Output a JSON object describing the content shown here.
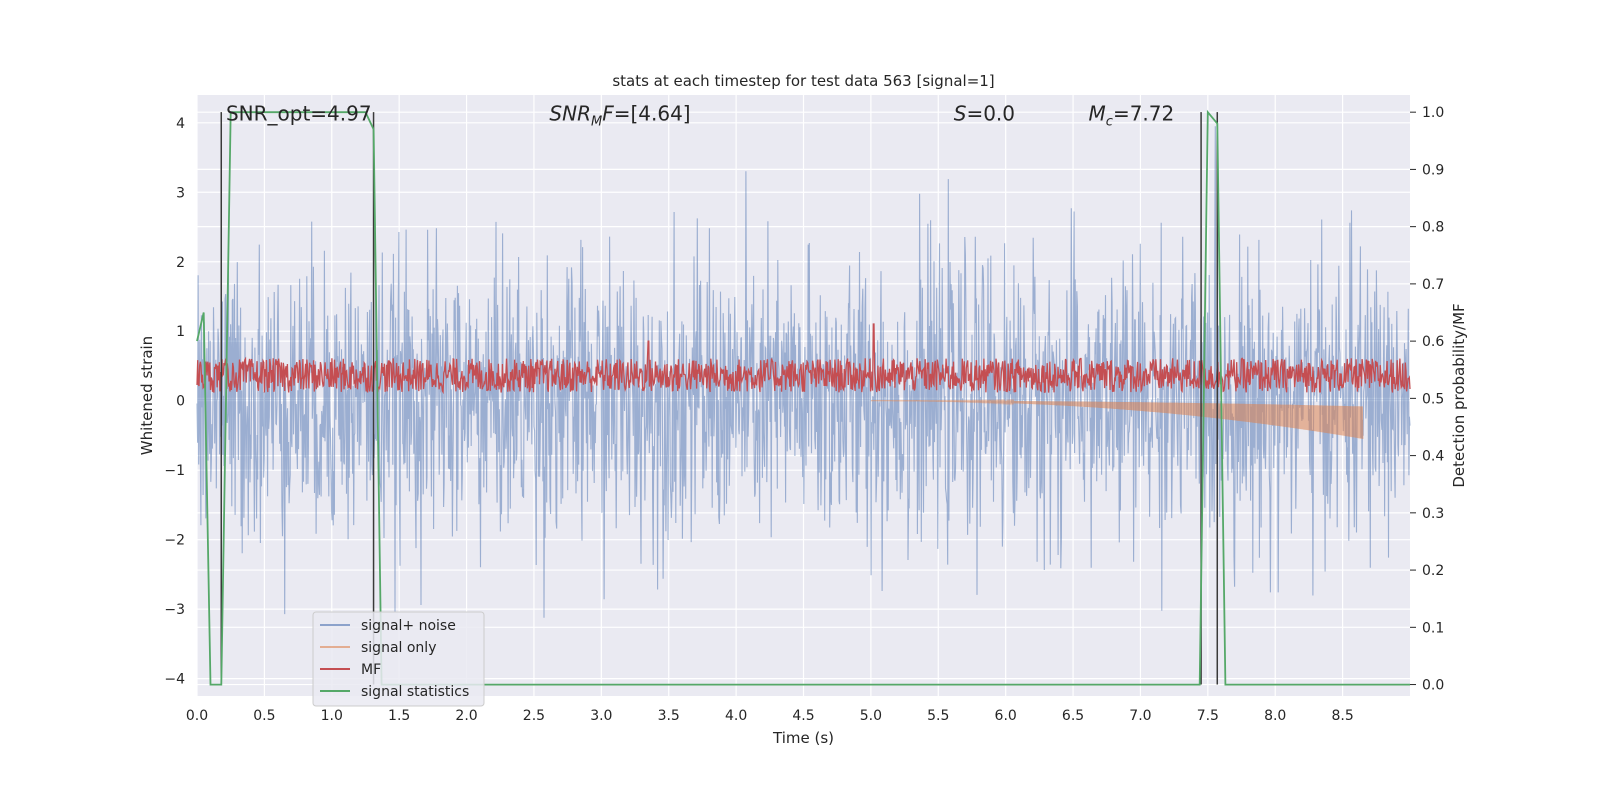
{
  "chart_data": {
    "type": "line",
    "title": "stats at each timestep for test data 563 [signal=1]",
    "xlabel": "Time (s)",
    "ylabel": "Whitened strain",
    "y2label": "Detection probability/MF",
    "xlim": [
      0.0,
      9.0
    ],
    "ylim": [
      -4.25,
      4.4
    ],
    "y2lim": [
      -0.02,
      1.03
    ],
    "xticks": [
      0.0,
      0.5,
      1.0,
      1.5,
      2.0,
      2.5,
      3.0,
      3.5,
      4.0,
      4.5,
      5.0,
      5.5,
      6.0,
      6.5,
      7.0,
      7.5,
      8.0,
      8.5
    ],
    "xtick_labels": [
      "0.0",
      "0.5",
      "1.0",
      "1.5",
      "2.0",
      "2.5",
      "3.0",
      "3.5",
      "4.0",
      "4.5",
      "5.0",
      "5.5",
      "6.0",
      "6.5",
      "7.0",
      "7.5",
      "8.0",
      "8.5"
    ],
    "yticks": [
      -4,
      -3,
      -2,
      -1,
      0,
      1,
      2,
      3,
      4
    ],
    "ytick_labels": [
      "−4",
      "−3",
      "−2",
      "−1",
      "0",
      "1",
      "2",
      "3",
      "4"
    ],
    "y2ticks": [
      0.0,
      0.1,
      0.2,
      0.3,
      0.4,
      0.5,
      0.6,
      0.7,
      0.8,
      0.9,
      1.0
    ],
    "y2tick_labels": [
      "0.0",
      "0.1",
      "0.2",
      "0.3",
      "0.4",
      "0.5",
      "0.6",
      "0.7",
      "0.8",
      "0.9",
      "1.0"
    ],
    "grid": true,
    "legend_position": "lower-left",
    "annotations": [
      {
        "name": "snr-opt",
        "text": "SNR_opt=4.97",
        "x": 0.2,
        "y": 4.12
      },
      {
        "name": "snr-mf",
        "text": "SNRMF=[4.64]",
        "x": 2.6,
        "y": 4.12
      },
      {
        "name": "s-value",
        "text": "S=0.0",
        "x": 5.6,
        "y": 4.12
      },
      {
        "name": "mc-value",
        "text": "Mc=7.72",
        "x": 6.6,
        "y": 4.12
      }
    ],
    "vertical_lines": [
      0.18,
      1.31,
      7.45,
      7.57
    ],
    "series": [
      {
        "name": "signal+ noise",
        "color": "#4c72b0",
        "axis": "left",
        "sigma": 1.0,
        "n_samples": 2200
      },
      {
        "name": "signal only",
        "color": "#dd8452",
        "axis": "left",
        "envelope_start": 5.0,
        "envelope_end": 8.65,
        "envelope_peak": -0.55
      },
      {
        "name": "MF",
        "color": "#c44e52",
        "axis": "right",
        "baseline": 0.54,
        "spread": 0.03,
        "peaks": [
          {
            "x": 3.35,
            "y": 0.6
          },
          {
            "x": 5.02,
            "y": 0.63
          }
        ]
      },
      {
        "name": "signal statistics",
        "color": "#55a868",
        "axis": "right",
        "x": [
          0.0,
          0.05,
          0.1,
          0.18,
          0.25,
          0.6,
          1.0,
          1.25,
          1.31,
          1.37,
          1.44,
          2.5,
          5.0,
          7.0,
          7.44,
          7.5,
          7.57,
          7.63,
          8.0,
          9.0
        ],
        "y": [
          0.6,
          0.65,
          0.0,
          0.0,
          1.0,
          1.0,
          1.0,
          1.0,
          0.97,
          0.0,
          0.0,
          0.0,
          0.0,
          0.0,
          0.0,
          1.0,
          0.98,
          0.0,
          0.0,
          0.0
        ]
      }
    ]
  }
}
